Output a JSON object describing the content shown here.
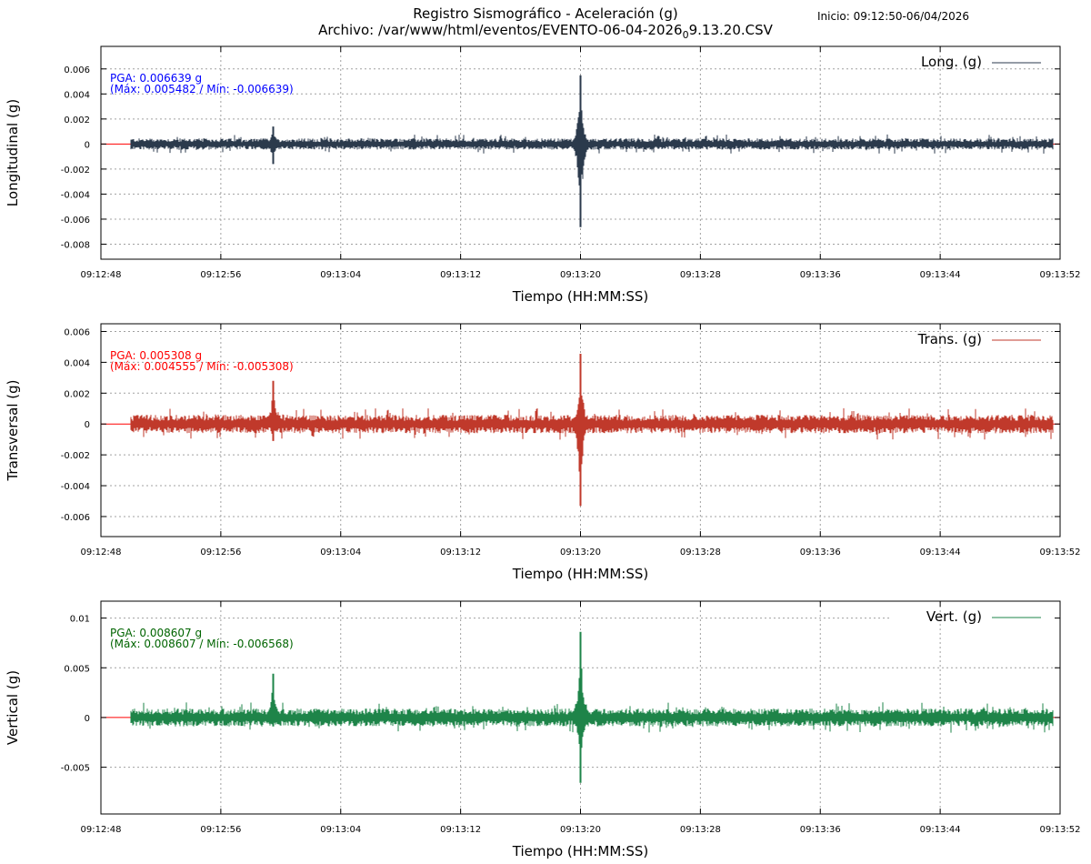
{
  "header": {
    "title_line1": "Registro Sismográfico - Aceleración (g)",
    "title_line2_prefix": "Archivo: /var/www/html/eventos/EVENTO-06-04-2026",
    "title_line2_sub": "0",
    "title_line2_suffix": "9.13.20.CSV",
    "inicio": "Inicio: 09:12:50-06/04/2026"
  },
  "colors": {
    "zero_line": "#ff0000",
    "grid": "#a0a0a0",
    "long": "#2b3a4c",
    "trans": "#c0392b",
    "vert": "#1e8449",
    "pga_long": "#0000ff",
    "pga_trans": "#ff0000",
    "pga_vert": "#006400"
  },
  "chart_data": [
    {
      "type": "line",
      "id": "long",
      "ylabel": "Longitudinal (g)",
      "xlabel": "Tiempo (HH:MM:SS)",
      "legend": "Long. (g)",
      "legend_position": "top-right",
      "grid": true,
      "xlim": [
        "09:12:48",
        "09:13:52"
      ],
      "x_ticks": [
        "09:12:48",
        "09:12:56",
        "09:13:04",
        "09:13:12",
        "09:13:20",
        "09:13:28",
        "09:13:36",
        "09:13:44",
        "09:13:52"
      ],
      "ylim": [
        -0.0092,
        0.0078
      ],
      "y_ticks": [
        0.006,
        0.004,
        0.002,
        0,
        -0.002,
        -0.004,
        -0.006,
        -0.008
      ],
      "y_tick_labels": [
        "0.006",
        "0.004",
        "0.002",
        "0",
        "-0.002",
        "-0.004",
        "-0.006",
        "-0.008"
      ],
      "pga_line1": "PGA: 0.006639 g",
      "pga_line2": "(Máx: 0.005482 / Mín: -0.006639)",
      "series": [
        {
          "x_range": [
            "09:12:50",
            "09:13:51.5"
          ],
          "noise_amplitude": 0.00045,
          "events": [
            {
              "time": "09:12:59.5",
              "max": 0.0014,
              "min": -0.0016
            },
            {
              "time": "09:13:20",
              "max": 0.005482,
              "min": -0.006639
            }
          ]
        }
      ]
    },
    {
      "type": "line",
      "id": "trans",
      "ylabel": "Transversal (g)",
      "xlabel": "Tiempo (HH:MM:SS)",
      "legend": "Trans. (g)",
      "legend_position": "top-right",
      "grid": true,
      "xlim": [
        "09:12:48",
        "09:13:52"
      ],
      "x_ticks": [
        "09:12:48",
        "09:12:56",
        "09:13:04",
        "09:13:12",
        "09:13:20",
        "09:13:28",
        "09:13:36",
        "09:13:44",
        "09:13:52"
      ],
      "ylim": [
        -0.0073,
        0.0065
      ],
      "y_ticks": [
        0.006,
        0.004,
        0.002,
        0,
        -0.002,
        -0.004,
        -0.006
      ],
      "y_tick_labels": [
        "0.006",
        "0.004",
        "0.002",
        "0",
        "-0.002",
        "-0.004",
        "-0.006"
      ],
      "pga_line1": "PGA: 0.005308 g",
      "pga_line2": "(Máx: 0.004555 / Mín: -0.005308)",
      "series": [
        {
          "x_range": [
            "09:12:50",
            "09:13:51.5"
          ],
          "noise_amplitude": 0.0006,
          "events": [
            {
              "time": "09:12:59.5",
              "max": 0.0028,
              "min": -0.0011
            },
            {
              "time": "09:13:20",
              "max": 0.004555,
              "min": -0.005308
            }
          ]
        }
      ]
    },
    {
      "type": "line",
      "id": "vert",
      "ylabel": "Vertical (g)",
      "xlabel": "Tiempo (HH:MM:SS)",
      "legend": "Vert. (g)",
      "legend_position": "top-right",
      "grid": true,
      "xlim": [
        "09:12:48",
        "09:13:52"
      ],
      "x_ticks": [
        "09:12:48",
        "09:12:56",
        "09:13:04",
        "09:13:12",
        "09:13:20",
        "09:13:28",
        "09:13:36",
        "09:13:44",
        "09:13:52"
      ],
      "ylim": [
        -0.0097,
        0.0117
      ],
      "y_ticks": [
        0.01,
        0.005,
        0,
        -0.005
      ],
      "y_tick_labels": [
        "0.01",
        "0.005",
        "0",
        "-0.005"
      ],
      "pga_line1": "PGA: 0.008607 g",
      "pga_line2": "(Máx: 0.008607 / Mín: -0.006568)",
      "series": [
        {
          "x_range": [
            "09:12:50",
            "09:13:51.5"
          ],
          "noise_amplitude": 0.0009,
          "events": [
            {
              "time": "09:12:59.5",
              "max": 0.0044,
              "min": -0.0009
            },
            {
              "time": "09:13:20",
              "max": 0.008607,
              "min": -0.006568
            }
          ]
        }
      ]
    }
  ]
}
